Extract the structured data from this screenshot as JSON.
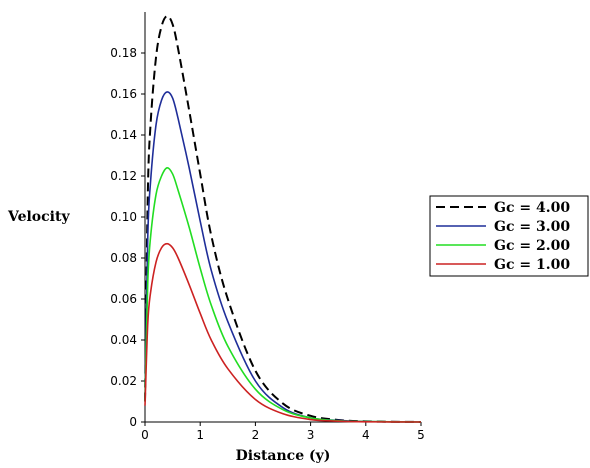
{
  "chart_data": {
    "type": "line",
    "xlabel": "Distance (y)",
    "ylabel": "Velocity",
    "xlim": [
      0,
      5
    ],
    "ylim": [
      0,
      0.2
    ],
    "xticks": [
      "0",
      "1",
      "2",
      "3",
      "4",
      "5"
    ],
    "yticks": [
      "0",
      "0.02",
      "0.04",
      "0.06",
      "0.08",
      "0.10",
      "0.12",
      "0.14",
      "0.16",
      "0.18"
    ],
    "grid": false,
    "legend_position": "right",
    "series": [
      {
        "name": "Gc = 4.00",
        "color": "#000000",
        "dashed": true,
        "x": [
          0,
          0.05,
          0.1,
          0.2,
          0.3,
          0.4,
          0.5,
          0.6,
          0.8,
          1.0,
          1.2,
          1.5,
          2.0,
          2.5,
          3.0,
          3.5,
          4.0,
          5.0
        ],
        "y": [
          0.01,
          0.11,
          0.145,
          0.178,
          0.193,
          0.198,
          0.194,
          0.182,
          0.152,
          0.121,
          0.091,
          0.06,
          0.025,
          0.009,
          0.003,
          0.001,
          0.0003,
          0
        ]
      },
      {
        "name": "Gc = 3.00",
        "color": "#1f2e99",
        "dashed": false,
        "x": [
          0,
          0.05,
          0.1,
          0.2,
          0.3,
          0.4,
          0.5,
          0.6,
          0.8,
          1.0,
          1.2,
          1.5,
          2.0,
          2.5,
          3.0,
          3.5,
          4.0,
          5.0
        ],
        "y": [
          0.01,
          0.09,
          0.117,
          0.145,
          0.157,
          0.161,
          0.158,
          0.148,
          0.124,
          0.098,
          0.074,
          0.049,
          0.02,
          0.007,
          0.002,
          0.0008,
          0.0002,
          0
        ]
      },
      {
        "name": "Gc = 2.00",
        "color": "#22dd22",
        "dashed": false,
        "x": [
          0,
          0.05,
          0.1,
          0.2,
          0.3,
          0.4,
          0.5,
          0.6,
          0.8,
          1.0,
          1.2,
          1.5,
          2.0,
          2.5,
          3.0,
          3.5,
          4.0,
          5.0
        ],
        "y": [
          0.01,
          0.068,
          0.09,
          0.111,
          0.12,
          0.124,
          0.121,
          0.113,
          0.095,
          0.075,
          0.057,
          0.037,
          0.016,
          0.006,
          0.002,
          0.0006,
          0.0002,
          0
        ]
      },
      {
        "name": "Gc = 1.00",
        "color": "#cc2222",
        "dashed": false,
        "x": [
          0,
          0.05,
          0.1,
          0.2,
          0.3,
          0.4,
          0.5,
          0.6,
          0.8,
          1.0,
          1.2,
          1.5,
          2.0,
          2.5,
          3.0,
          3.5,
          4.0,
          5.0
        ],
        "y": [
          0.008,
          0.048,
          0.063,
          0.078,
          0.085,
          0.087,
          0.085,
          0.08,
          0.067,
          0.053,
          0.04,
          0.026,
          0.011,
          0.004,
          0.0012,
          0.0004,
          0.0001,
          0
        ]
      }
    ]
  }
}
